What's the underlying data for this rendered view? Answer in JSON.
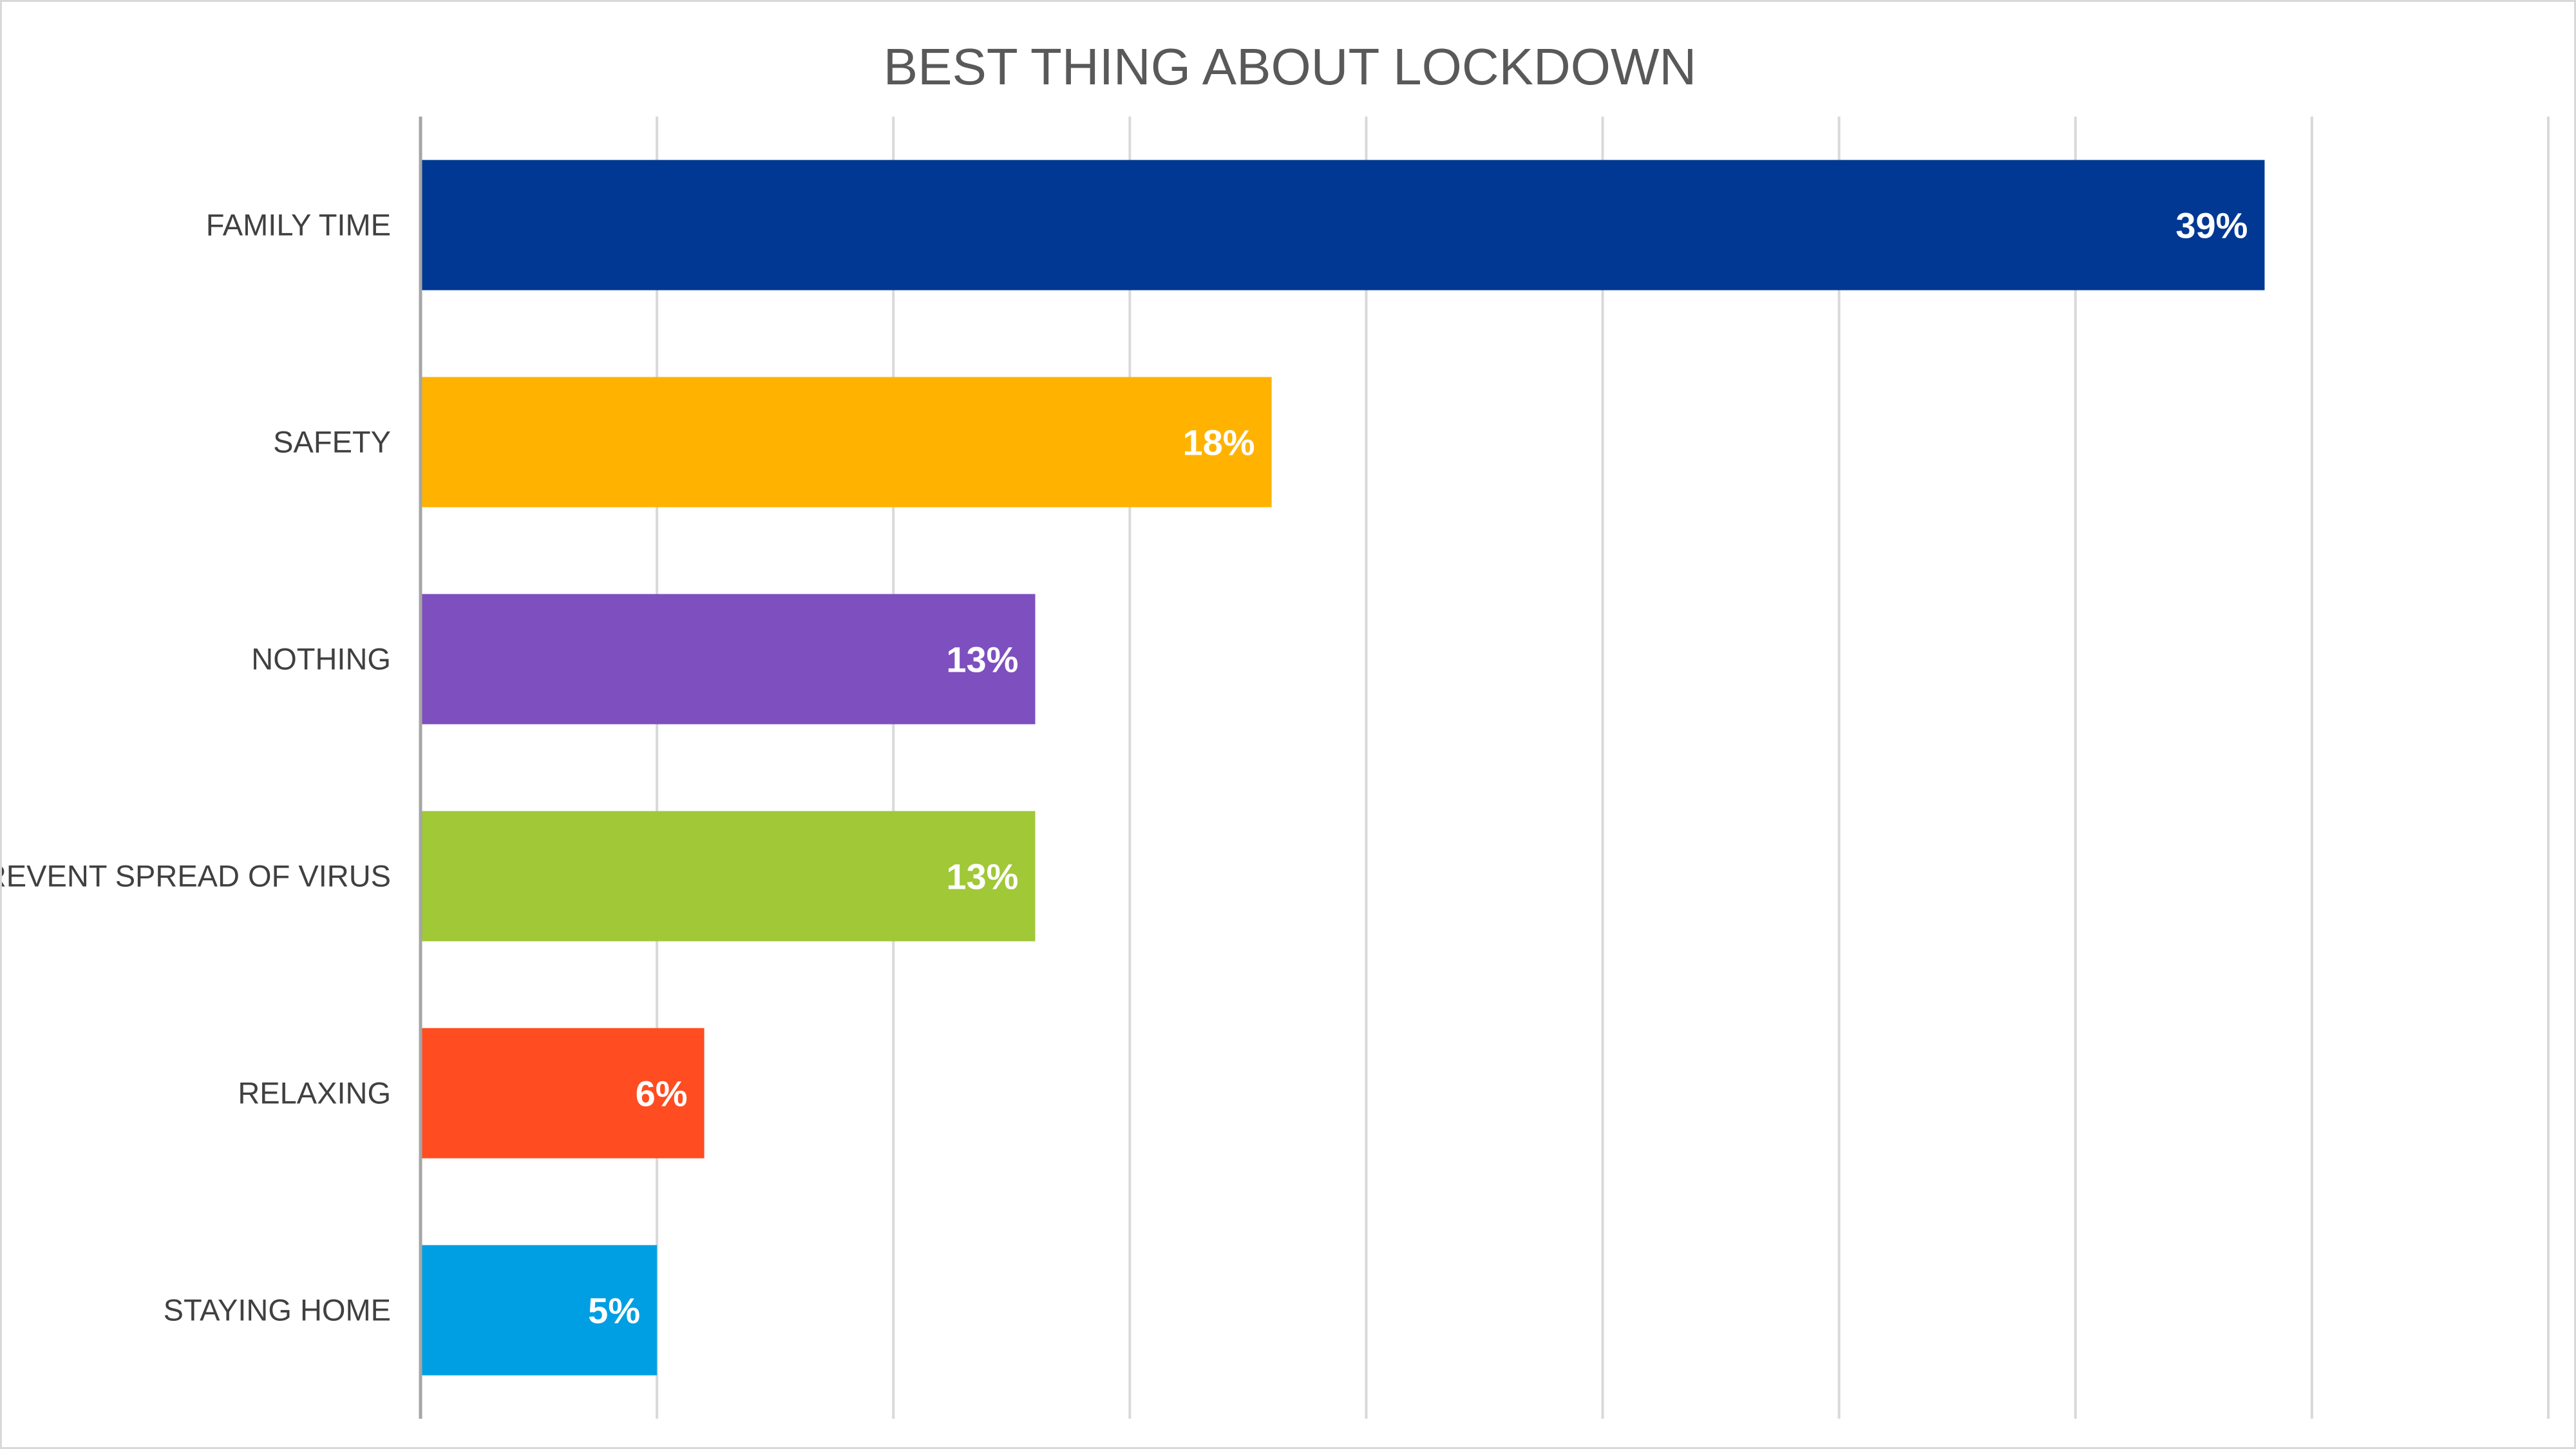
{
  "chart_data": {
    "type": "bar",
    "orientation": "horizontal",
    "title": "BEST THING ABOUT LOCKDOWN",
    "categories": [
      "FAMILY TIME",
      "SAFETY",
      "NOTHING",
      "PREVENT SPREAD OF VIRUS",
      "RELAXING",
      "STAYING HOME"
    ],
    "values": [
      39,
      18,
      13,
      13,
      6,
      5
    ],
    "data_labels": [
      "39%",
      "18%",
      "13%",
      "13%",
      "6%",
      "5%"
    ],
    "colors": [
      "#003893",
      "#FFB300",
      "#7E4FBF",
      "#A0C837",
      "#FF4C21",
      "#009FE3"
    ],
    "xlim": [
      0,
      45
    ],
    "grid": true,
    "gridline_step": 5,
    "legend": "none",
    "xlabel": "",
    "ylabel": ""
  }
}
